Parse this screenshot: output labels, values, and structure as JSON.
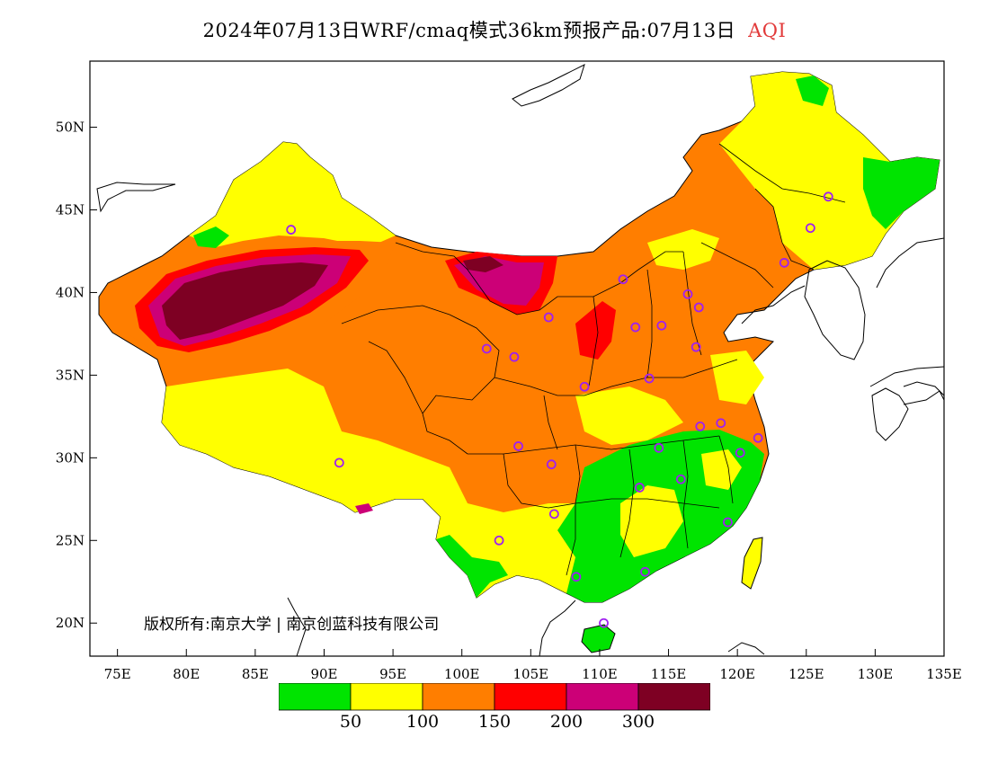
{
  "title": {
    "main": "2024年07月13日WRF/cmaq模式36km预报产品:07月13日",
    "product": "AQI"
  },
  "axes": {
    "lat_labels": [
      "50N",
      "45N",
      "40N",
      "35N",
      "30N",
      "25N",
      "20N"
    ],
    "lat_values": [
      50,
      45,
      40,
      35,
      30,
      25,
      20
    ],
    "lon_labels": [
      "75E",
      "80E",
      "85E",
      "90E",
      "95E",
      "100E",
      "105E",
      "110E",
      "115E",
      "120E",
      "125E",
      "130E",
      "135E"
    ],
    "lon_values": [
      75,
      80,
      85,
      90,
      95,
      100,
      105,
      110,
      115,
      120,
      125,
      130,
      135
    ],
    "lon_range": [
      73,
      135
    ],
    "lat_range": [
      18,
      54
    ]
  },
  "copyright": "版权所有:南京大学 | 南京创蓝科技有限公司",
  "legend": {
    "colors": [
      "#00e400",
      "#ffff00",
      "#ff7e00",
      "#ff0000",
      "#cc0077",
      "#7e0023"
    ],
    "labels": [
      "50",
      "100",
      "150",
      "200",
      "300"
    ]
  },
  "colors": {
    "good": "#00e400",
    "moderate": "#ffff00",
    "sensitive": "#ff7e00",
    "unhealthy": "#ff0000",
    "very_unhealthy": "#cc0077",
    "hazardous": "#7e0023",
    "station_marker": "#a020f0"
  },
  "stations": [
    [
      87.6,
      43.8
    ],
    [
      91.1,
      29.7
    ],
    [
      101.8,
      36.6
    ],
    [
      103.8,
      36.1
    ],
    [
      106.3,
      38.5
    ],
    [
      111.7,
      40.8
    ],
    [
      112.6,
      37.9
    ],
    [
      114.5,
      38.0
    ],
    [
      108.9,
      34.3
    ],
    [
      113.6,
      34.8
    ],
    [
      117.0,
      36.7
    ],
    [
      116.4,
      39.9
    ],
    [
      117.2,
      39.1
    ],
    [
      123.4,
      41.8
    ],
    [
      125.3,
      43.9
    ],
    [
      126.6,
      45.8
    ],
    [
      104.1,
      30.7
    ],
    [
      106.5,
      29.6
    ],
    [
      106.7,
      26.6
    ],
    [
      102.7,
      25.0
    ],
    [
      108.3,
      22.8
    ],
    [
      113.3,
      23.1
    ],
    [
      110.3,
      20.0
    ],
    [
      119.3,
      26.1
    ],
    [
      115.9,
      28.7
    ],
    [
      112.9,
      28.2
    ],
    [
      114.3,
      30.6
    ],
    [
      117.3,
      31.9
    ],
    [
      118.8,
      32.1
    ],
    [
      120.2,
      30.3
    ],
    [
      121.5,
      31.2
    ]
  ]
}
